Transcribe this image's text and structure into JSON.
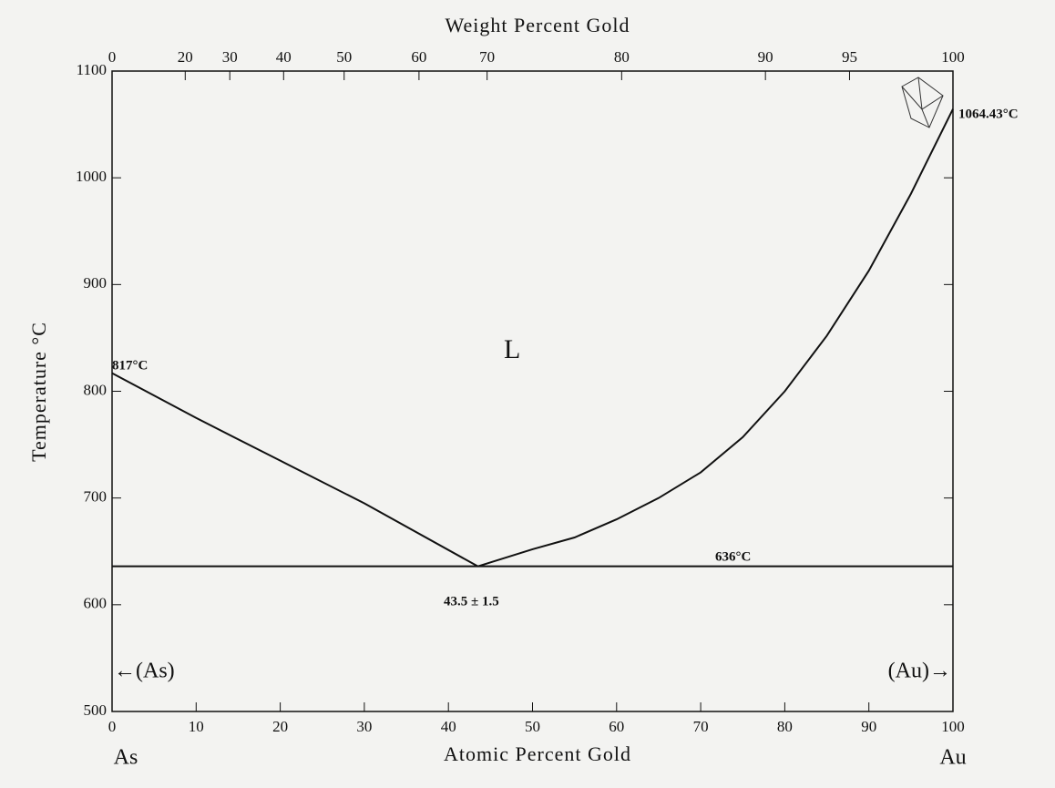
{
  "chart_data": {
    "type": "line",
    "title": "Weight Percent Gold",
    "x_label": "Atomic Percent Gold",
    "y_label": "Temperature °C",
    "xlim": [
      0,
      100
    ],
    "ylim": [
      500,
      1100
    ],
    "xticks": [
      0,
      10,
      20,
      30,
      40,
      50,
      60,
      70,
      80,
      90,
      100
    ],
    "yticks": [
      500,
      600,
      700,
      800,
      900,
      1000,
      1100
    ],
    "x2ticks": [
      {
        "value": 0,
        "label": "0"
      },
      {
        "value": 8.7,
        "label": "20"
      },
      {
        "value": 14.0,
        "label": "30"
      },
      {
        "value": 20.4,
        "label": "40"
      },
      {
        "value": 27.6,
        "label": "50"
      },
      {
        "value": 36.5,
        "label": "60"
      },
      {
        "value": 44.6,
        "label": "70"
      },
      {
        "value": 60.6,
        "label": "80"
      },
      {
        "value": 77.7,
        "label": "90"
      },
      {
        "value": 87.7,
        "label": "95"
      },
      {
        "value": 100,
        "label": "100"
      }
    ],
    "series": [
      {
        "color": "#111111",
        "x": [
          0,
          10,
          20,
          30,
          43.5
        ],
        "values": [
          817,
          775,
          735,
          695,
          636
        ]
      },
      {
        "color": "#111111",
        "x": [
          43.5,
          50,
          55,
          60,
          65,
          70,
          75,
          80,
          85,
          90,
          95,
          100
        ],
        "values": [
          636,
          652,
          663,
          680,
          700,
          724,
          757,
          800,
          852,
          913,
          985,
          1064.43
        ]
      },
      {
        "color": "#111111",
        "x": [
          0,
          100
        ],
        "values": [
          636,
          636
        ]
      }
    ],
    "annotations": [
      "817°C",
      "1064.43°C",
      "636°C",
      "43.5 ± 1.5",
      "L",
      "←(As)",
      "(Au)→",
      "As",
      "Au"
    ]
  }
}
